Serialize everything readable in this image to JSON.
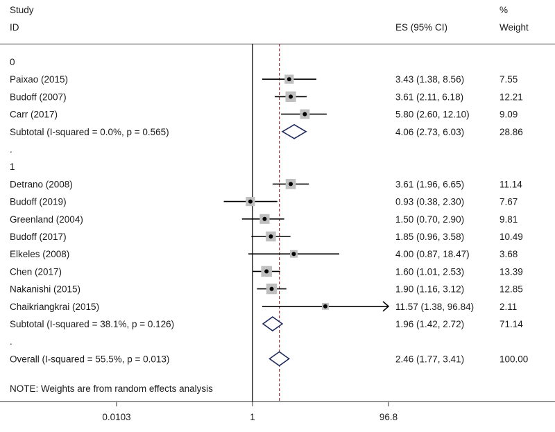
{
  "header": {
    "study_line1": "Study",
    "study_line2": "ID",
    "es_label": "ES (95% CI)",
    "weight_line1": "%",
    "weight_line2": "Weight"
  },
  "note": "NOTE: Weights are from random effects analysis",
  "colors": {
    "marker_box": "#bfbfbf",
    "diamond_stroke": "#1f2a5c",
    "reference_line": "#000000",
    "overall_line": "#8b2b2b"
  },
  "chart_data": {
    "type": "forest",
    "x_scale": "log",
    "xlim": [
      0.0103,
      96.8
    ],
    "x_ticks": [
      {
        "value": 0.0103,
        "label": "0.0103"
      },
      {
        "value": 1,
        "label": "1"
      },
      {
        "value": 96.8,
        "label": "96.8"
      }
    ],
    "reference_value": 1,
    "overall_es": 2.46,
    "rows": [
      {
        "kind": "group",
        "label": "0"
      },
      {
        "kind": "study",
        "label": "Paixao (2015)",
        "es": 3.43,
        "lo": 1.38,
        "hi": 8.56,
        "es_text": "3.43 (1.38, 8.56)",
        "weight": 7.55,
        "weight_text": "7.55"
      },
      {
        "kind": "study",
        "label": "Budoff (2007)",
        "es": 3.61,
        "lo": 2.11,
        "hi": 6.18,
        "es_text": "3.61 (2.11, 6.18)",
        "weight": 12.21,
        "weight_text": "12.21"
      },
      {
        "kind": "study",
        "label": "Carr (2017)",
        "es": 5.8,
        "lo": 2.6,
        "hi": 12.1,
        "es_text": "5.80 (2.60, 12.10)",
        "weight": 9.09,
        "weight_text": "9.09"
      },
      {
        "kind": "subtotal",
        "label": "Subtotal  (I-squared = 0.0%, p = 0.565)",
        "es": 4.06,
        "lo": 2.73,
        "hi": 6.03,
        "es_text": "4.06 (2.73, 6.03)",
        "weight": 28.86,
        "weight_text": "28.86"
      },
      {
        "kind": "spacer",
        "label": "."
      },
      {
        "kind": "group",
        "label": "1"
      },
      {
        "kind": "study",
        "label": "Detrano (2008)",
        "es": 3.61,
        "lo": 1.96,
        "hi": 6.65,
        "es_text": "3.61 (1.96, 6.65)",
        "weight": 11.14,
        "weight_text": "11.14"
      },
      {
        "kind": "study",
        "label": "Budoff (2019)",
        "es": 0.93,
        "lo": 0.38,
        "hi": 2.3,
        "es_text": "0.93 (0.38, 2.30)",
        "weight": 7.67,
        "weight_text": "7.67"
      },
      {
        "kind": "study",
        "label": "Greenland (2004)",
        "es": 1.5,
        "lo": 0.7,
        "hi": 2.9,
        "es_text": "1.50 (0.70, 2.90)",
        "weight": 9.81,
        "weight_text": "9.81"
      },
      {
        "kind": "study",
        "label": "Budoff (2017)",
        "es": 1.85,
        "lo": 0.96,
        "hi": 3.58,
        "es_text": "1.85 (0.96, 3.58)",
        "weight": 10.49,
        "weight_text": "10.49"
      },
      {
        "kind": "study",
        "label": "Elkeles (2008)",
        "es": 4.0,
        "lo": 0.87,
        "hi": 18.47,
        "es_text": "4.00 (0.87, 18.47)",
        "weight": 3.68,
        "weight_text": "3.68"
      },
      {
        "kind": "study",
        "label": "Chen (2017)",
        "es": 1.6,
        "lo": 1.01,
        "hi": 2.53,
        "es_text": "1.60 (1.01, 2.53)",
        "weight": 13.39,
        "weight_text": "13.39"
      },
      {
        "kind": "study",
        "label": "Nakanishi (2015)",
        "es": 1.9,
        "lo": 1.16,
        "hi": 3.12,
        "es_text": "1.90 (1.16, 3.12)",
        "weight": 12.85,
        "weight_text": "12.85"
      },
      {
        "kind": "study",
        "label": "Chaikriangkrai (2015)",
        "es": 11.57,
        "lo": 1.38,
        "hi": 96.84,
        "es_text": "11.57 (1.38, 96.84)",
        "weight": 2.11,
        "weight_text": "2.11",
        "arrow_right": true
      },
      {
        "kind": "subtotal",
        "label": "Subtotal  (I-squared = 38.1%, p = 0.126)",
        "es": 1.96,
        "lo": 1.42,
        "hi": 2.72,
        "es_text": "1.96 (1.42, 2.72)",
        "weight": 71.14,
        "weight_text": "71.14"
      },
      {
        "kind": "spacer",
        "label": "."
      },
      {
        "kind": "overall",
        "label": "Overall  (I-squared = 55.5%, p = 0.013)",
        "es": 2.46,
        "lo": 1.77,
        "hi": 3.41,
        "es_text": "2.46 (1.77, 3.41)",
        "weight": 100.0,
        "weight_text": "100.00"
      }
    ]
  }
}
